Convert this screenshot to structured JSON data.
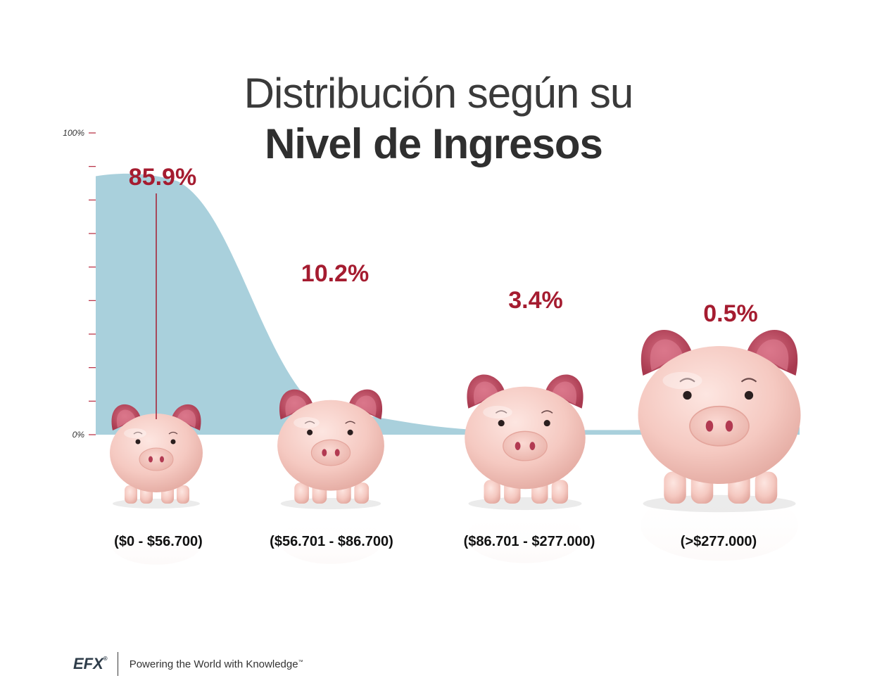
{
  "title": {
    "line1": "Distribución según su",
    "line2": "Nivel de Ingresos"
  },
  "chart_data": {
    "type": "area",
    "title": "Distribución según su Nivel de Ingresos",
    "ylim": [
      0,
      100
    ],
    "y_ticks": [
      "100%",
      "0%"
    ],
    "categories": [
      "($0 - $56.700)",
      "($56.701 - $86.700)",
      "($86.701 - $277.000)",
      "(>$277.000)"
    ],
    "values": [
      85.9,
      10.2,
      3.4,
      0.5
    ],
    "value_labels": [
      "85.9%",
      "10.2%",
      "3.4%",
      "0.5%"
    ],
    "pig_sizes_relative": [
      1.0,
      1.15,
      1.3,
      1.75
    ],
    "colors": {
      "area": "#a9d0dc",
      "value_label": "#a51c30",
      "leader_line": "#a51c30",
      "tick": "#b5283d",
      "pig_body": "#f6cfc8",
      "pig_ear": "#c2536a"
    },
    "grid": false
  },
  "footer": {
    "logo": "EFX",
    "logo_mark": "®",
    "tagline": "Powering the World with Knowledge",
    "tagline_mark": "™"
  }
}
